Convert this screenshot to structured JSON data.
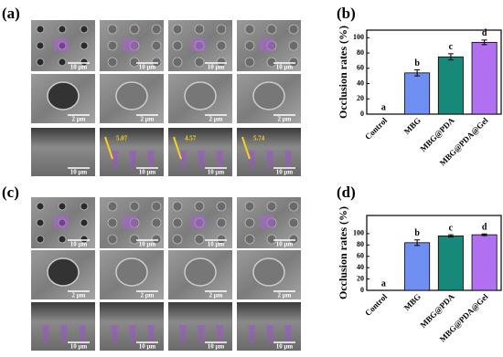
{
  "figures": [
    {
      "label": "(a)",
      "rows": [
        [
          "10 μm",
          "10 μm",
          "10 μm",
          "10 μm"
        ],
        [
          "2 μm",
          "2 μm",
          "2 μm",
          "2 μm"
        ],
        [
          "10 μm",
          "10 μm",
          "10 μm",
          "10 μm"
        ]
      ],
      "measurements": [
        "5.07",
        "4.57",
        "5.74"
      ]
    },
    {
      "label": "(c)",
      "rows": [
        [
          "10 μm",
          "10 μm",
          "10 μm",
          "10 μm"
        ],
        [
          "2 μm",
          "2 μm",
          "2 μm",
          "2 μm"
        ],
        [
          "10 μm",
          "10 μm",
          "10 μm",
          "10 μm"
        ]
      ]
    }
  ],
  "chart_data": [
    {
      "type": "bar",
      "panel": "(b)",
      "ylabel": "Occlusion rates (%)",
      "categories": [
        "Control",
        "MBG",
        "MBG@PDA",
        "MBG@PDA@Gel"
      ],
      "values": [
        0,
        54,
        75,
        94
      ],
      "errors": [
        0,
        4,
        4,
        3
      ],
      "letters": [
        "a",
        "b",
        "c",
        "d"
      ],
      "colors": [
        "#6f8ff2",
        "#6f8ff2",
        "#17897a",
        "#b170f0"
      ],
      "ylim": [
        0,
        110
      ],
      "yticks": [
        0,
        20,
        40,
        60,
        80,
        100
      ]
    },
    {
      "type": "bar",
      "panel": "(d)",
      "ylabel": "Occlusion rates (%)",
      "categories": [
        "Control",
        "MBG",
        "MBG@PDA",
        "MBG@PDA@Gel"
      ],
      "values": [
        0,
        84,
        96,
        98
      ],
      "errors": [
        0,
        5,
        2,
        1.5
      ],
      "letters": [
        "a",
        "b",
        "c",
        "d"
      ],
      "colors": [
        "#6f8ff2",
        "#6f8ff2",
        "#17897a",
        "#b170f0"
      ],
      "ylim": [
        0,
        132
      ],
      "yticks": [
        0,
        20,
        40,
        60,
        80,
        100
      ]
    }
  ]
}
